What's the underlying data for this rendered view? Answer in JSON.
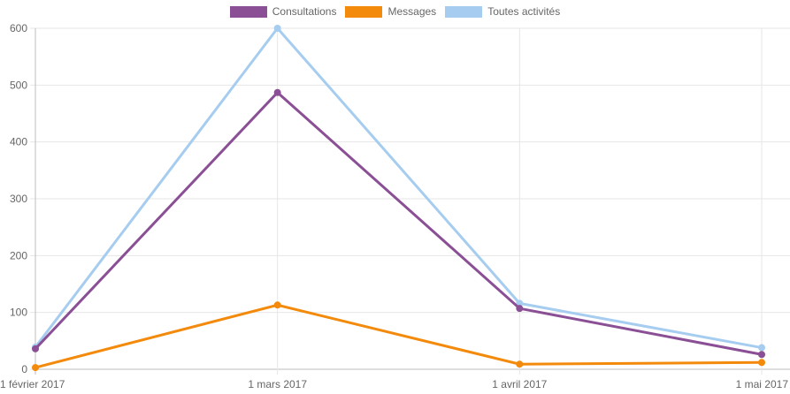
{
  "chart_data": {
    "type": "line",
    "x": [
      "1 février 2017",
      "1 mars 2017",
      "1 avril 2017",
      "1 mai 2017"
    ],
    "series": [
      {
        "name": "Consultations",
        "color": "#8a4f94",
        "values": [
          36,
          487,
          107,
          26
        ]
      },
      {
        "name": "Messages",
        "color": "#f38a0b",
        "values": [
          3,
          113,
          9,
          12
        ]
      },
      {
        "name": "Toutes activités",
        "color": "#a6cdf0",
        "values": [
          39,
          600,
          116,
          38
        ]
      }
    ],
    "title": "",
    "xlabel": "",
    "ylabel": "",
    "ylim": [
      0,
      600
    ],
    "yticks": [
      "0",
      "100",
      "200",
      "300",
      "400",
      "500",
      "600"
    ],
    "grid": true,
    "legend_position": "top"
  }
}
